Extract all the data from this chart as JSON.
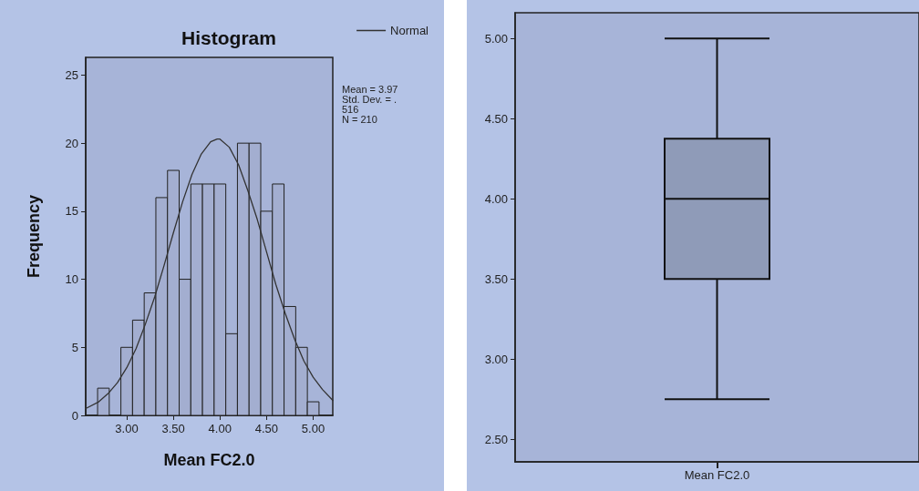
{
  "chart_data": [
    {
      "type": "histogram",
      "title": "Histogram",
      "xlabel": "Mean FC2.0",
      "ylabel": "Frequency",
      "bins": [
        2.6875,
        2.8125,
        2.9375,
        3.0625,
        3.1875,
        3.3125,
        3.4375,
        3.5625,
        3.6875,
        3.8125,
        3.9375,
        4.0625,
        4.1875,
        4.3125,
        4.4375,
        4.5625,
        4.6875,
        4.8125,
        4.9375,
        5.0625
      ],
      "values": [
        2,
        0,
        5,
        7,
        9,
        16,
        18,
        10,
        17,
        17,
        17,
        6,
        20,
        20,
        15,
        17,
        8,
        5,
        1
      ],
      "color": "#a3aed0",
      "series": [
        {
          "name": "Normal",
          "type": "line",
          "color": "#333333",
          "x": [
            2.56,
            2.7,
            2.8,
            2.9,
            3.0,
            3.1,
            3.2,
            3.3,
            3.4,
            3.5,
            3.6,
            3.7,
            3.8,
            3.9,
            3.97,
            4.0,
            4.1,
            4.2,
            4.3,
            4.4,
            4.5,
            4.6,
            4.7,
            4.8,
            4.9,
            5.0,
            5.1,
            5.21
          ],
          "values": [
            0.5,
            1.0,
            1.6,
            2.4,
            3.5,
            4.9,
            6.7,
            8.7,
            11.0,
            13.4,
            15.7,
            17.7,
            19.2,
            20.1,
            20.3,
            20.3,
            19.7,
            18.4,
            16.5,
            14.4,
            12.0,
            9.6,
            7.5,
            5.6,
            4.0,
            2.8,
            1.9,
            1.1
          ]
        }
      ],
      "xlim": [
        2.56,
        5.21
      ],
      "xticks": [
        {
          "value": 3,
          "label": "3.00"
        },
        {
          "value": 3.5,
          "label": "3.50"
        },
        {
          "value": 4,
          "label": "4.00"
        },
        {
          "value": 4.5,
          "label": "4.50"
        },
        {
          "value": 5,
          "label": "5.00"
        }
      ],
      "ylim": [
        0,
        26.3
      ],
      "yticks": [
        0,
        5,
        10,
        15,
        20,
        25
      ],
      "annotations": [
        "Mean = 3.97",
        "Std. Dev. = .",
        "516",
        "N = 210"
      ],
      "legend": "top right",
      "grid": false,
      "marker": "none"
    },
    {
      "type": "box",
      "categories": [
        "Mean FC2.0"
      ],
      "color": "#8f9bb8",
      "boxes": [
        {
          "low": 2.75,
          "q1": 3.5,
          "median": 4.0,
          "q3": 4.375,
          "high": 5.0
        }
      ],
      "ylim": [
        2.36,
        5.16
      ],
      "yticks": [
        {
          "value": 2.5,
          "label": "2.50"
        },
        {
          "value": 3,
          "label": "3.00"
        },
        {
          "value": 3.5,
          "label": "3.50"
        },
        {
          "value": 4,
          "label": "4.00"
        },
        {
          "value": 4.5,
          "label": "4.50"
        },
        {
          "value": 5,
          "label": "5.00"
        }
      ],
      "grid": false
    }
  ]
}
